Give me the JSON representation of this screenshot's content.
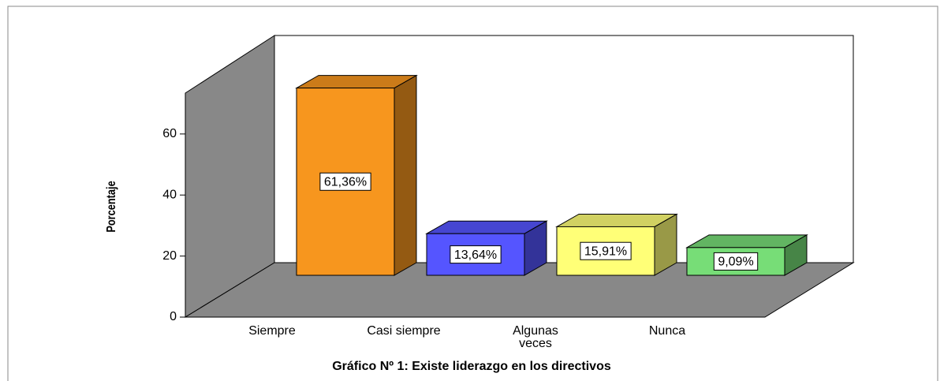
{
  "chart_data": {
    "type": "bar3d",
    "title": "Gráfico Nº 1: Existe liderazgo en los directivos",
    "y_label": "Porcentaje",
    "categories": [
      "Siempre",
      "Casi siempre",
      "Algunas veces",
      "Nunca"
    ],
    "values": [
      61.36,
      13.64,
      15.91,
      9.09
    ],
    "value_labels": [
      "61,36%",
      "13,64%",
      "15,91%",
      "9,09%"
    ],
    "colors": [
      "#f7961e",
      "#5555ff",
      "#ffff77",
      "#77dd77"
    ],
    "ylim": [
      0,
      73.4
    ],
    "yticks": [
      0,
      20,
      40,
      60
    ]
  }
}
